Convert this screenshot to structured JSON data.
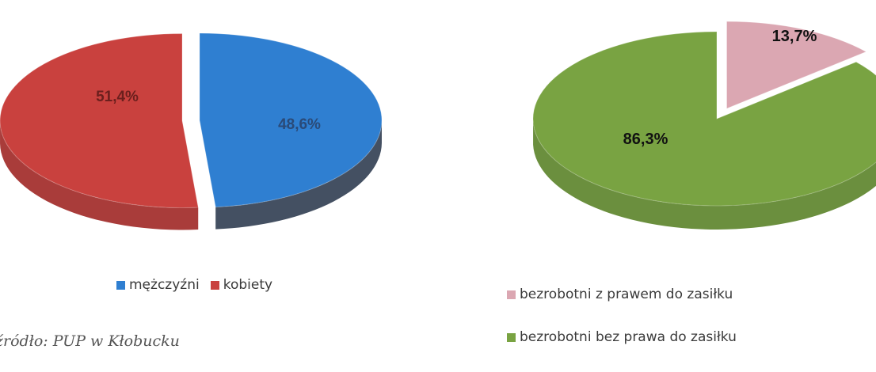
{
  "chart_data": [
    {
      "type": "pie",
      "title": "",
      "slices": [
        {
          "label": "mężczyźni",
          "value": 48.6,
          "value_label": "48,6%",
          "color": "#2f7fd1",
          "side_color": "#445062",
          "label_color": "#2a4a78",
          "exploded": false
        },
        {
          "label": "kobiety",
          "value": 51.4,
          "value_label": "51,4%",
          "color": "#c9413e",
          "side_color": "#a93c3a",
          "label_color": "#6b1f1d",
          "exploded": true
        }
      ],
      "legend_position": "bottom",
      "three_d": true
    },
    {
      "type": "pie",
      "title": "",
      "slices": [
        {
          "label": "bezrobotni z prawem do zasiłku",
          "value": 13.7,
          "value_label": "13,7%",
          "color": "#dba7b2",
          "side_color": "#9c8487",
          "label_color": "#111111",
          "exploded": true
        },
        {
          "label": "bezrobotni bez prawa do zasiłku",
          "value": 86.3,
          "value_label": "86,3%",
          "color": "#79a342",
          "side_color": "#6b8f3e",
          "label_color": "#111111",
          "exploded": false
        }
      ],
      "legend_position": "bottom",
      "three_d": true
    }
  ],
  "legend_left": [
    {
      "label": "mężczyźni",
      "color": "#2f7fd1"
    },
    {
      "label": "kobiety",
      "color": "#c9413e"
    }
  ],
  "legend_right": [
    {
      "label": "bezrobotni z prawem do zasiłku",
      "color": "#dba7b2"
    },
    {
      "label": "bezrobotni bez prawa do zasiłku",
      "color": "#79a342"
    }
  ],
  "source_note": "źródło: PUP w Kłobucku"
}
